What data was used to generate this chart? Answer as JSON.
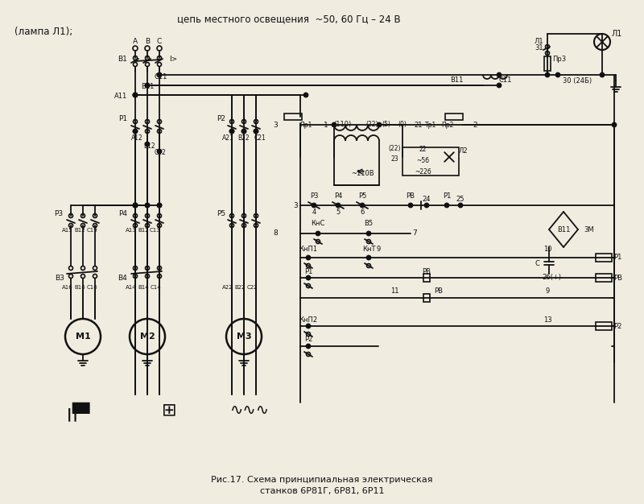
{
  "title_line1": "цепь местного освещения  ~50, 60 Гц – 24 В",
  "title_line2": "(лампа Л1);",
  "caption_line1": "Рис.17. Схема принципиальная электрическая",
  "caption_line2": "станков 6Р81Г, 6Р81, 6Р11",
  "bg_color": "#f0ece0",
  "line_color": "#111111",
  "fig_width": 8.0,
  "fig_height": 6.26,
  "dpi": 100
}
